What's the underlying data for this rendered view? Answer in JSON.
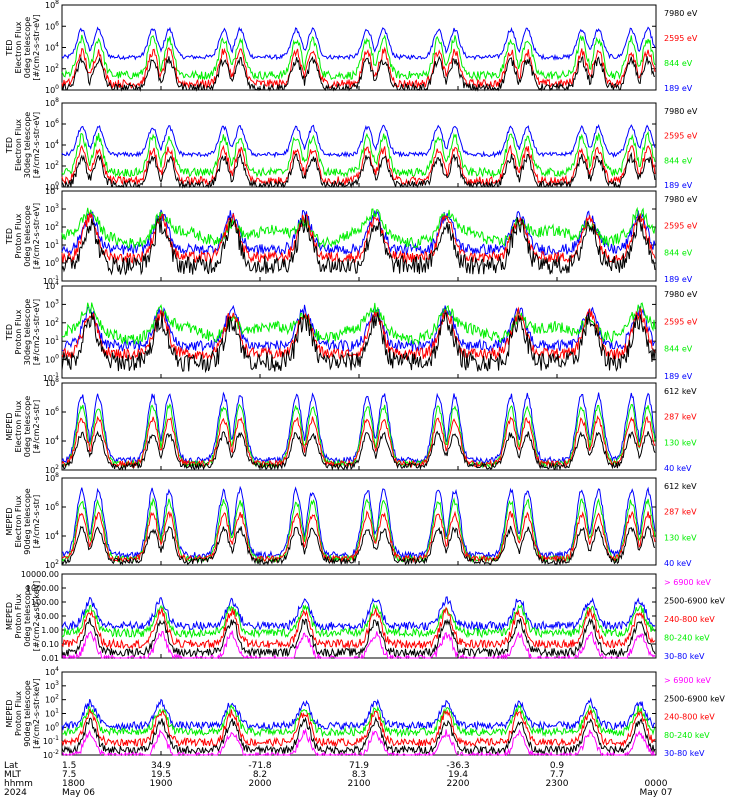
{
  "colors": {
    "blue": "#0000ff",
    "red": "#ff0000",
    "green": "#00ee00",
    "black": "#000000",
    "magenta": "#ff00ff"
  },
  "chart_data": {
    "type": "line",
    "x_axis": {
      "row_labels": [
        "Lat",
        "MLT",
        "hhmm",
        "2024"
      ],
      "ticks": [
        {
          "lat": "1.5",
          "mlt": "7.5",
          "hhmm": "1800",
          "date": "May 06"
        },
        {
          "lat": "34.9",
          "mlt": "19.5",
          "hhmm": "1900",
          "date": ""
        },
        {
          "lat": "-71.8",
          "mlt": "8.2",
          "hhmm": "2000",
          "date": ""
        },
        {
          "lat": "71.9",
          "mlt": "8.3",
          "hhmm": "2100",
          "date": ""
        },
        {
          "lat": "-36.3",
          "mlt": "19.4",
          "hhmm": "2200",
          "date": ""
        },
        {
          "lat": "0.9",
          "mlt": "7.7",
          "hhmm": "2300",
          "date": ""
        },
        {
          "lat": "",
          "mlt": "",
          "hhmm": "0000",
          "date": "May 07"
        }
      ]
    },
    "panels": [
      {
        "ylabel": [
          "TED",
          "Electron Flux",
          "0deg telescope",
          "[#/cm2-s-str-eV]"
        ],
        "yticks": [
          "10^0",
          "10^2",
          "10^4",
          "10^6",
          "10^8"
        ],
        "ylog": [
          0,
          8
        ],
        "legend": [
          {
            "text": "7980 eV",
            "color": "black"
          },
          {
            "text": "2595 eV",
            "color": "red"
          },
          {
            "text": "844 eV",
            "color": "green"
          },
          {
            "text": "189 eV",
            "color": "blue"
          }
        ]
      },
      {
        "ylabel": [
          "TED",
          "Electron Flux",
          "30deg telescope",
          "[#/cm2-s-str-eV]"
        ],
        "yticks": [
          "10^0",
          "10^2",
          "10^4",
          "10^6",
          "10^8"
        ],
        "ylog": [
          0,
          8
        ],
        "legend": [
          {
            "text": "7980 eV",
            "color": "black"
          },
          {
            "text": "2595 eV",
            "color": "red"
          },
          {
            "text": "844 eV",
            "color": "green"
          },
          {
            "text": "189 eV",
            "color": "blue"
          }
        ]
      },
      {
        "ylabel": [
          "TED",
          "Proton Flux",
          "0deg telescope",
          "[#/cm2-s-str-eV]"
        ],
        "yticks": [
          "10^-1",
          "10^0",
          "10^1",
          "10^2",
          "10^3",
          "10^4"
        ],
        "ylog": [
          -1,
          4.7
        ],
        "legend": [
          {
            "text": "7980 eV",
            "color": "black"
          },
          {
            "text": "2595 eV",
            "color": "red"
          },
          {
            "text": "844 eV",
            "color": "green"
          },
          {
            "text": "189 eV",
            "color": "blue"
          }
        ]
      },
      {
        "ylabel": [
          "TED",
          "Proton Flux",
          "30deg telescope",
          "[#/cm2-s-str-eV]"
        ],
        "yticks": [
          "10^-1",
          "10^0",
          "10^1",
          "10^2",
          "10^3",
          "10^4"
        ],
        "ylog": [
          -1,
          4.7
        ],
        "legend": [
          {
            "text": "7980 eV",
            "color": "black"
          },
          {
            "text": "2595 eV",
            "color": "red"
          },
          {
            "text": "844 eV",
            "color": "green"
          },
          {
            "text": "189 eV",
            "color": "blue"
          }
        ]
      },
      {
        "ylabel": [
          "MEPED",
          "Electron Flux",
          "0deg telescope",
          "[#/cm2-s-str]"
        ],
        "yticks": [
          "10^2",
          "10^4",
          "10^6",
          "10^8"
        ],
        "ylog": [
          1,
          8
        ],
        "legend": [
          {
            "text": "612 keV",
            "color": "black"
          },
          {
            "text": "287 keV",
            "color": "red"
          },
          {
            "text": "130 keV",
            "color": "green"
          },
          {
            "text": "40 keV",
            "color": "blue"
          }
        ]
      },
      {
        "ylabel": [
          "MEPED",
          "Electron Flux",
          "90deg telescope",
          "[#/cm2-s-str]"
        ],
        "yticks": [
          "10^2",
          "10^4",
          "10^6",
          "10^8"
        ],
        "ylog": [
          1,
          8
        ],
        "legend": [
          {
            "text": "612 keV",
            "color": "black"
          },
          {
            "text": "287 keV",
            "color": "red"
          },
          {
            "text": "130 keV",
            "color": "green"
          },
          {
            "text": "40 keV",
            "color": "blue"
          }
        ]
      },
      {
        "ylabel": [
          "MEPED",
          "Proton Flux",
          "0deg telescope",
          "[#/cm2-s-str-keV]"
        ],
        "yticks": [
          "0.01",
          "0.10",
          "1.00",
          "10.00",
          "100.00",
          "1000.00",
          "10000.00"
        ],
        "ylog": [
          -2,
          4
        ],
        "legend": [
          {
            "text": "> 6900 keV",
            "color": "magenta"
          },
          {
            "text": "2500-6900 keV",
            "color": "black"
          },
          {
            "text": "240-800 keV",
            "color": "red"
          },
          {
            "text": "80-240 keV",
            "color": "green"
          },
          {
            "text": "30-80 keV",
            "color": "blue"
          }
        ]
      },
      {
        "ylabel": [
          "MEPED",
          "Proton Flux",
          "90deg telescope",
          "[#/cm2-s-str-keV]"
        ],
        "yticks": [
          "10^-2",
          "10^-1",
          "10^0",
          "10^1",
          "10^2",
          "10^3",
          "10^4"
        ],
        "ylog": [
          -2,
          4.5
        ],
        "legend": [
          {
            "text": "> 6900 keV",
            "color": "magenta"
          },
          {
            "text": "2500-6900 keV",
            "color": "black"
          },
          {
            "text": "240-800 keV",
            "color": "red"
          },
          {
            "text": "80-240 keV",
            "color": "green"
          },
          {
            "text": "30-80 keV",
            "color": "blue"
          }
        ]
      }
    ],
    "series_style": "noisy time series; flux peaks on each radiation-belt / auroral-zone pass",
    "pass_centers_hhmm": [
      "1817",
      "1900",
      "1943",
      "2027",
      "2110",
      "2153",
      "2237",
      "2320",
      "2350"
    ]
  }
}
